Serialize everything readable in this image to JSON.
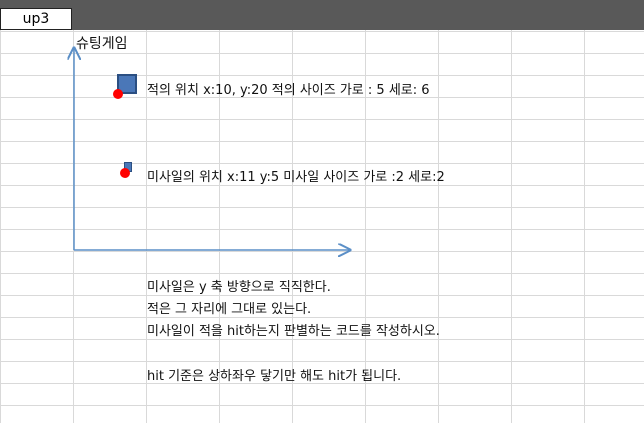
{
  "cell_reference": "up3",
  "sheet": {
    "title": "슈팅게임",
    "enemy_info": "적의 위치  x:10, y:20  적의 사이즈 가로 : 5 세로: 6",
    "missile_info": "미사일의 위치 x:11 y:5 미사일 사이즈 가로 :2  세로:2",
    "instructions": [
      "미사일은 y 축 방향으로 직직한다.",
      "적은 그 자리에 그대로 있는다.",
      "미사일이 적을  hit하는지 판별하는 코드를 작성하시오."
    ],
    "note": "hit 기준은 상하좌우 닿기만 해도 hit가 됩니다."
  },
  "colors": {
    "header_bar": "#595959",
    "shape_fill": "#4a77b8",
    "marker": "#ff0000",
    "axis": "#5b8fc7"
  },
  "icons": [
    "enemy-square-icon",
    "missile-square-icon",
    "origin-marker-icon"
  ]
}
